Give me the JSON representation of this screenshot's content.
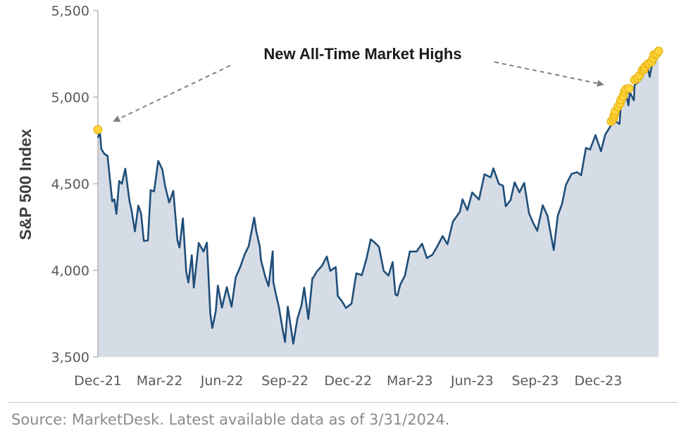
{
  "chart_data": {
    "type": "area",
    "title": "",
    "ylabel": "S&P 500 Index",
    "xlabel": "",
    "ylim": [
      3500,
      5500
    ],
    "yticks": [
      "3,500",
      "4,000",
      "4,500",
      "5,000",
      "5,500"
    ],
    "ytick_values": [
      3500,
      4000,
      4500,
      5000,
      5500
    ],
    "xlim": [
      "2021-12-31",
      "2024-03-31"
    ],
    "xticks": [
      "Dec-21",
      "Mar-22",
      "Jun-22",
      "Sep-22",
      "Dec-22",
      "Mar-23",
      "Jun-23",
      "Sep-23",
      "Dec-23"
    ],
    "xtick_dates": [
      "2021-12-31",
      "2022-03-31",
      "2022-06-30",
      "2022-09-30",
      "2022-12-31",
      "2023-03-31",
      "2023-06-30",
      "2023-09-30",
      "2023-12-31"
    ],
    "annotation": "New All-Time Market Highs",
    "grid": false,
    "colors": {
      "line": "#1f4e79",
      "fill": "#d6dce6",
      "highs": "#ffd43b",
      "highs_edge": "#e0a800",
      "arrow": "#808080",
      "axis": "#a6a6a6"
    },
    "series": [
      {
        "x": [
          "2021-12-31",
          "2022-01-03",
          "2022-01-05",
          "2022-01-10",
          "2022-01-14",
          "2022-01-21",
          "2022-01-24",
          "2022-01-27",
          "2022-01-31",
          "2022-02-04",
          "2022-02-09",
          "2022-02-15",
          "2022-02-18",
          "2022-02-23",
          "2022-02-28",
          "2022-03-04",
          "2022-03-08",
          "2022-03-14",
          "2022-03-18",
          "2022-03-23",
          "2022-03-29",
          "2022-04-04",
          "2022-04-08",
          "2022-04-14",
          "2022-04-20",
          "2022-04-26",
          "2022-04-29",
          "2022-05-04",
          "2022-05-09",
          "2022-05-12",
          "2022-05-17",
          "2022-05-20",
          "2022-05-27",
          "2022-06-03",
          "2022-06-08",
          "2022-06-13",
          "2022-06-16",
          "2022-06-21",
          "2022-06-24",
          "2022-06-30",
          "2022-07-07",
          "2022-07-14",
          "2022-07-20",
          "2022-07-27",
          "2022-08-02",
          "2022-08-08",
          "2022-08-16",
          "2022-08-19",
          "2022-08-24",
          "2022-08-26",
          "2022-09-01",
          "2022-09-06",
          "2022-09-12",
          "2022-09-13",
          "2022-09-16",
          "2022-09-21",
          "2022-09-27",
          "2022-09-30",
          "2022-10-04",
          "2022-10-12",
          "2022-10-18",
          "2022-10-24",
          "2022-10-28",
          "2022-11-03",
          "2022-11-09",
          "2022-11-10",
          "2022-11-15",
          "2022-11-23",
          "2022-11-30",
          "2022-12-05",
          "2022-12-13",
          "2022-12-16",
          "2022-12-22",
          "2022-12-28",
          "2023-01-05",
          "2023-01-12",
          "2023-01-20",
          "2023-01-27",
          "2023-02-02",
          "2023-02-07",
          "2023-02-14",
          "2023-02-21",
          "2023-02-28",
          "2023-03-06",
          "2023-03-10",
          "2023-03-13",
          "2023-03-17",
          "2023-03-24",
          "2023-03-31",
          "2023-04-10",
          "2023-04-18",
          "2023-04-25",
          "2023-05-03",
          "2023-05-10",
          "2023-05-18",
          "2023-05-25",
          "2023-06-02",
          "2023-06-12",
          "2023-06-16",
          "2023-06-23",
          "2023-06-30",
          "2023-07-10",
          "2023-07-18",
          "2023-07-27",
          "2023-07-31",
          "2023-08-08",
          "2023-08-14",
          "2023-08-18",
          "2023-08-25",
          "2023-08-31",
          "2023-09-07",
          "2023-09-14",
          "2023-09-21",
          "2023-09-27",
          "2023-10-03",
          "2023-10-11",
          "2023-10-18",
          "2023-10-27",
          "2023-11-02",
          "2023-11-08",
          "2023-11-14",
          "2023-11-22",
          "2023-11-30",
          "2023-12-06",
          "2023-12-13",
          "2023-12-19",
          "2023-12-27",
          "2024-01-04",
          "2024-01-10",
          "2024-01-19",
          "2024-01-24",
          "2024-01-31",
          "2024-02-02",
          "2024-02-09",
          "2024-02-13",
          "2024-02-15",
          "2024-02-21",
          "2024-02-22",
          "2024-02-29",
          "2024-03-07",
          "2024-03-12",
          "2024-03-15",
          "2024-03-21",
          "2024-03-28"
        ],
        "values": [
          4766,
          4797,
          4700,
          4670,
          4662,
          4398,
          4410,
          4326,
          4516,
          4500,
          4587,
          4402,
          4349,
          4225,
          4374,
          4329,
          4170,
          4173,
          4463,
          4456,
          4632,
          4583,
          4488,
          4392,
          4459,
          4175,
          4132,
          4300,
          3991,
          3930,
          4088,
          3901,
          4158,
          4109,
          4160,
          3750,
          3667,
          3765,
          3912,
          3785,
          3903,
          3790,
          3959,
          4023,
          4092,
          4140,
          4305,
          4228,
          4140,
          4058,
          3966,
          3909,
          4110,
          3932,
          3873,
          3790,
          3648,
          3586,
          3791,
          3577,
          3720,
          3797,
          3901,
          3720,
          3956,
          3956,
          3992,
          4027,
          4080,
          3998,
          4019,
          3852,
          3822,
          3783,
          3808,
          3983,
          3972,
          4070,
          4179,
          4164,
          4136,
          3997,
          3970,
          4048,
          3861,
          3855,
          3917,
          3970,
          4109,
          4109,
          4154,
          4071,
          4090,
          4138,
          4198,
          4151,
          4282,
          4338,
          4410,
          4348,
          4450,
          4409,
          4555,
          4537,
          4589,
          4499,
          4489,
          4370,
          4406,
          4508,
          4451,
          4505,
          4330,
          4274,
          4229,
          4376,
          4314,
          4117,
          4317,
          4383,
          4496,
          4557,
          4567,
          4549,
          4707,
          4698,
          4781,
          4688,
          4783,
          4840,
          4864,
          4845,
          4958,
          5026,
          4953,
          5029,
          4981,
          5069,
          5096,
          5157,
          5175,
          5117,
          5241,
          5254
        ]
      }
    ],
    "highs": [
      {
        "x": "2021-12-31",
        "value": 4812
      },
      {
        "x": "2024-01-19",
        "value": 4860
      },
      {
        "x": "2024-01-22",
        "value": 4875
      },
      {
        "x": "2024-01-23",
        "value": 4890
      },
      {
        "x": "2024-01-24",
        "value": 4905
      },
      {
        "x": "2024-01-25",
        "value": 4920
      },
      {
        "x": "2024-01-29",
        "value": 4945
      },
      {
        "x": "2024-02-01",
        "value": 4965
      },
      {
        "x": "2024-02-02",
        "value": 4985
      },
      {
        "x": "2024-02-05",
        "value": 5005
      },
      {
        "x": "2024-02-07",
        "value": 5030
      },
      {
        "x": "2024-02-09",
        "value": 5045
      },
      {
        "x": "2024-02-14",
        "value": 5050
      },
      {
        "x": "2024-02-22",
        "value": 5100
      },
      {
        "x": "2024-02-26",
        "value": 5110
      },
      {
        "x": "2024-02-29",
        "value": 5125
      },
      {
        "x": "2024-03-04",
        "value": 5155
      },
      {
        "x": "2024-03-07",
        "value": 5160
      },
      {
        "x": "2024-03-08",
        "value": 5175
      },
      {
        "x": "2024-03-12",
        "value": 5190
      },
      {
        "x": "2024-03-14",
        "value": 5195
      },
      {
        "x": "2024-03-18",
        "value": 5205
      },
      {
        "x": "2024-03-20",
        "value": 5225
      },
      {
        "x": "2024-03-21",
        "value": 5245
      },
      {
        "x": "2024-03-25",
        "value": 5250
      },
      {
        "x": "2024-03-28",
        "value": 5266
      }
    ]
  },
  "footer": {
    "source": "Source: MarketDesk. Latest available data as of 3/31/2024."
  }
}
